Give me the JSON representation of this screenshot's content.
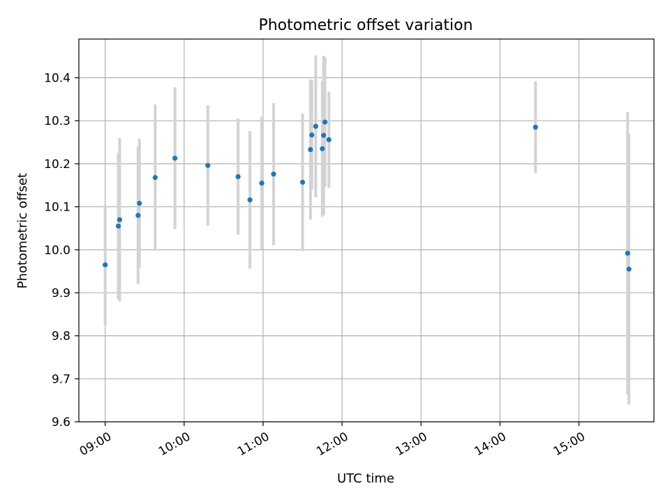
{
  "chart_data": {
    "type": "scatter",
    "title": "Photometric offset variation",
    "xlabel": "UTC time",
    "ylabel": "Photometric offset",
    "xlim": [
      "08:40",
      "15:57"
    ],
    "ylim": [
      9.6,
      10.49
    ],
    "grid": true,
    "error_bars": true,
    "point_color": "#1f77b4",
    "errorbar_color": "#d3d3d3",
    "x_tick_labels": [
      "09:00",
      "10:00",
      "11:00",
      "12:00",
      "13:00",
      "14:00",
      "15:00"
    ],
    "y_tick_labels": [
      "9.6",
      "9.7",
      "9.8",
      "9.9",
      "10.0",
      "10.1",
      "10.2",
      "10.3",
      "10.4"
    ],
    "points": [
      {
        "x": "09:00",
        "y": 9.965,
        "yerr": 0.14
      },
      {
        "x": "09:10",
        "y": 10.055,
        "yerr": 0.17
      },
      {
        "x": "09:11",
        "y": 10.07,
        "yerr": 0.19
      },
      {
        "x": "09:25",
        "y": 10.08,
        "yerr": 0.16
      },
      {
        "x": "09:26",
        "y": 10.108,
        "yerr": 0.15
      },
      {
        "x": "09:38",
        "y": 10.168,
        "yerr": 0.17
      },
      {
        "x": "09:53",
        "y": 10.213,
        "yerr": 0.165
      },
      {
        "x": "10:18",
        "y": 10.196,
        "yerr": 0.14
      },
      {
        "x": "10:41",
        "y": 10.17,
        "yerr": 0.135
      },
      {
        "x": "10:50",
        "y": 10.116,
        "yerr": 0.16
      },
      {
        "x": "10:59",
        "y": 10.155,
        "yerr": 0.155
      },
      {
        "x": "11:08",
        "y": 10.176,
        "yerr": 0.165
      },
      {
        "x": "11:30",
        "y": 10.157,
        "yerr": 0.16
      },
      {
        "x": "11:36",
        "y": 10.233,
        "yerr": 0.163
      },
      {
        "x": "11:37",
        "y": 10.267,
        "yerr": 0.127
      },
      {
        "x": "11:40",
        "y": 10.287,
        "yerr": 0.165
      },
      {
        "x": "11:45",
        "y": 10.235,
        "yerr": 0.158
      },
      {
        "x": "11:46",
        "y": 10.266,
        "yerr": 0.185
      },
      {
        "x": "11:47",
        "y": 10.297,
        "yerr": 0.15
      },
      {
        "x": "11:50",
        "y": 10.256,
        "yerr": 0.112
      },
      {
        "x": "14:27",
        "y": 10.285,
        "yerr": 0.107
      },
      {
        "x": "15:37",
        "y": 9.992,
        "yerr": 0.328
      },
      {
        "x": "15:38",
        "y": 9.955,
        "yerr": 0.315
      }
    ]
  }
}
